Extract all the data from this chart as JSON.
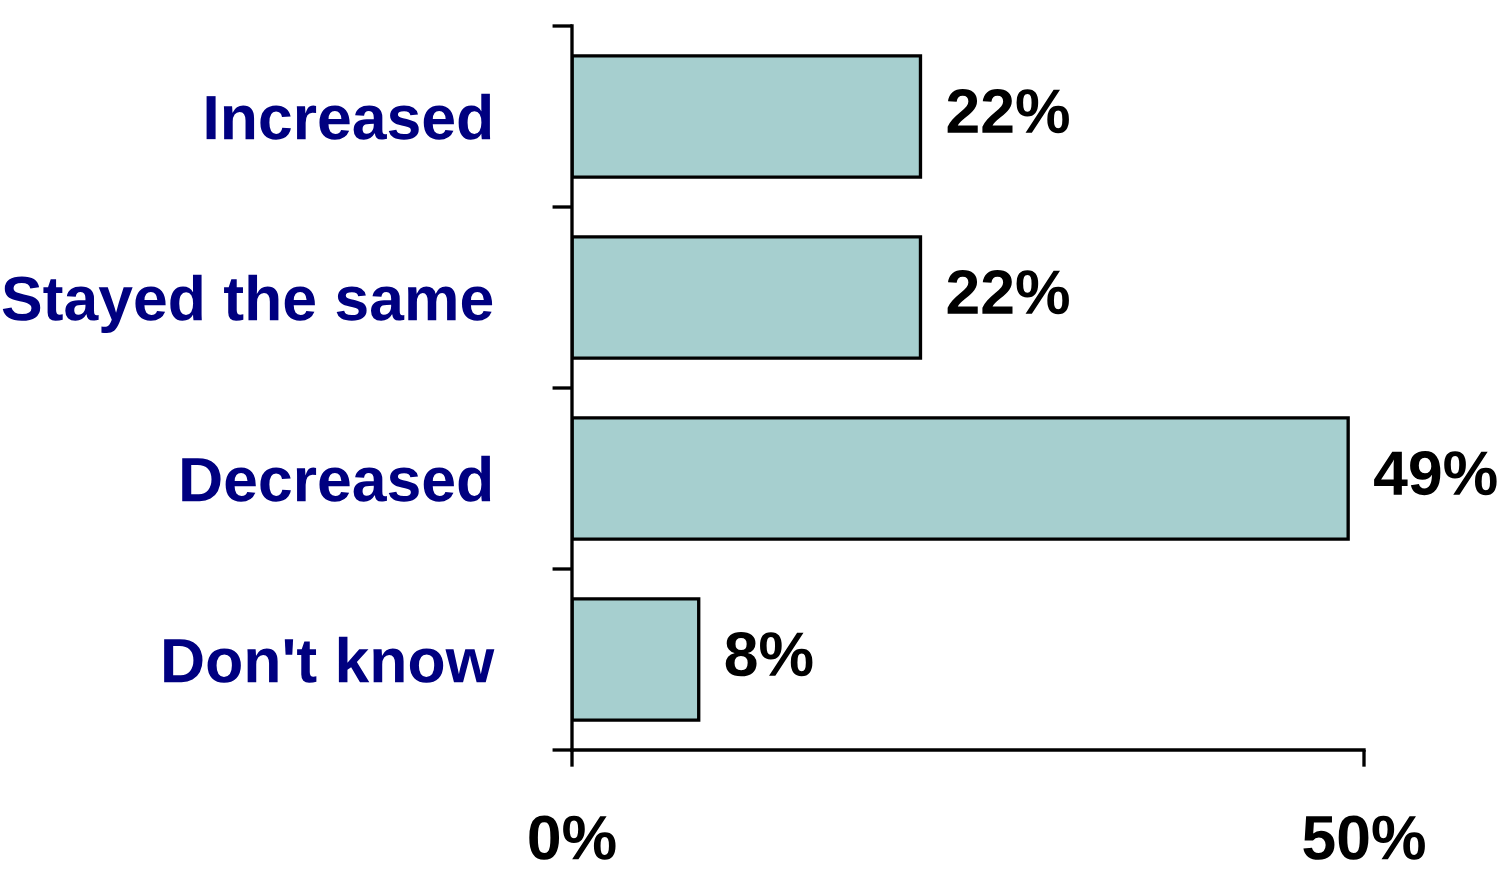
{
  "chart_data": {
    "type": "bar",
    "orientation": "horizontal",
    "categories": [
      "Increased",
      "Stayed the same",
      "Decreased",
      "Don't know"
    ],
    "values": [
      22,
      22,
      49,
      8
    ],
    "color": "#a6cfcf",
    "value_labels": [
      "22%",
      "22%",
      "49%",
      "8%"
    ],
    "xlim": [
      0,
      50
    ],
    "xticks": [
      {
        "value": 0,
        "label": "0%"
      },
      {
        "value": 50,
        "label": "50%"
      }
    ],
    "grid": false
  }
}
